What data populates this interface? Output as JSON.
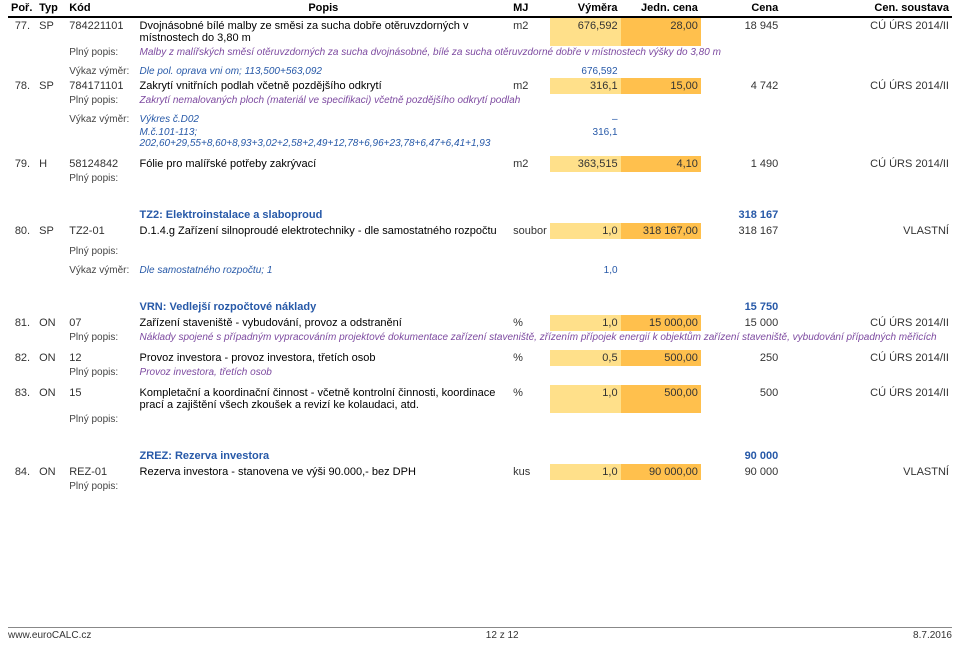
{
  "header": {
    "por": "Poř.",
    "typ": "Typ",
    "kod": "Kód",
    "popis": "Popis",
    "mj": "MJ",
    "vymera": "Výměra",
    "jedn": "Jedn. cena",
    "cena": "Cena",
    "soustava": "Cen. soustava"
  },
  "rows": [
    {
      "n": "77.",
      "typ": "SP",
      "kod": "784221101",
      "popis": "Dvojnásobné bílé malby ze směsi za sucha dobře otěruvzdorných v místnostech do 3,80 m",
      "mj": "m2",
      "vym": "676,592",
      "jedn": "28,00",
      "cena": "18 945",
      "soust": "CÚ ÚRS 2014/II",
      "pp_lbl": "Plný popis:",
      "pp_txt": "Malby z malířských směsí otěruvzdorných za sucha dvojnásobné, bílé za sucha otěruvzdorné dobře v místnostech výšky do 3,80 m",
      "vv_lbl": "Výkaz výměr:",
      "vv_txt": "Dle pol. oprava vni om;      113,500+563,092",
      "vv_val": "676,592"
    },
    {
      "n": "78.",
      "typ": "SP",
      "kod": "784171101",
      "popis": "Zakrytí vnitřních podlah včetně pozdějšího odkrytí",
      "mj": "m2",
      "vym": "316,1",
      "jedn": "15,00",
      "cena": "4 742",
      "soust": "CÚ ÚRS 2014/II",
      "pp_lbl": "Plný popis:",
      "pp_txt": "Zakrytí nemalovaných ploch (materiál ve specifikaci) včetně pozdějšího odkrytí podlah",
      "vv_lbl": "Výkaz výměr:",
      "vv_txt": "Výkres č.D02",
      "vv_val": "–",
      "vv2_txt": "M.č.101-113;       202,60+29,55+8,60+8,93+3,02+2,58+2,49+12,78+6,96+23,78+6,47+6,41+1,93",
      "vv2_val": "316,1"
    },
    {
      "n": "79.",
      "typ": "H",
      "kod": "58124842",
      "popis": "Fólie pro malířské potřeby zakrývací",
      "mj": "m2",
      "vym": "363,515",
      "jedn": "4,10",
      "cena": "1 490",
      "soust": "CÚ ÚRS 2014/II",
      "pp_lbl": "Plný popis:"
    }
  ],
  "section_tz2": {
    "title": "TZ2: Elektroinstalace a slaboproud",
    "total": "318 167"
  },
  "row80": {
    "n": "80.",
    "typ": "SP",
    "kod": "TZ2-01",
    "popis": "D.1.4.g Zařízení silnoproudé elektrotechniky - dle samostatného rozpočtu",
    "mj": "soubor",
    "vym": "1,0",
    "jedn": "318 167,00",
    "cena": "318 167",
    "soust": "VLASTNÍ",
    "pp_lbl": "Plný popis:",
    "vv_lbl": "Výkaz výměr:",
    "vv_txt": "Dle samostatného rozpočtu;      1",
    "vv_val": "1,0"
  },
  "section_vrn": {
    "title": "VRN: Vedlejší rozpočtové náklady",
    "total": "15 750"
  },
  "row81": {
    "n": "81.",
    "typ": "ON",
    "kod": "07",
    "popis": "Zařízení staveniště - vybudování, provoz a odstranění",
    "mj": "%",
    "vym": "1,0",
    "jedn": "15 000,00",
    "cena": "15 000",
    "soust": "CÚ ÚRS 2014/II",
    "pp_lbl": "Plný popis:",
    "pp_txt": "Náklady spojené s případným vypracováním projektové dokumentace zařízení staveniště, zřízením přípojek energií k objektům zařízení staveniště, vybudování případných měřicích"
  },
  "row82": {
    "n": "82.",
    "typ": "ON",
    "kod": "12",
    "popis": "Provoz investora - provoz investora, třetích osob",
    "mj": "%",
    "vym": "0,5",
    "jedn": "500,00",
    "cena": "250",
    "soust": "CÚ ÚRS 2014/II",
    "pp_lbl": "Plný popis:",
    "pp_txt": "Provoz investora, třetích osob"
  },
  "row83": {
    "n": "83.",
    "typ": "ON",
    "kod": "15",
    "popis": "Kompletační a koordinační činnost - včetně kontrolní činnosti, koordinace prací a zajištění všech zkoušek a revizí ke kolaudaci, atd.",
    "mj": "%",
    "vym": "1,0",
    "jedn": "500,00",
    "cena": "500",
    "soust": "CÚ ÚRS 2014/II",
    "pp_lbl": "Plný popis:"
  },
  "section_zrez": {
    "title": "ZREZ: Rezerva investora",
    "total": "90 000"
  },
  "row84": {
    "n": "84.",
    "typ": "ON",
    "kod": "REZ-01",
    "popis": "Rezerva investora - stanovena ve výši 90.000,- bez DPH",
    "mj": "kus",
    "vym": "1,0",
    "jedn": "90 000,00",
    "cena": "90 000",
    "soust": "VLASTNÍ",
    "pp_lbl": "Plný popis:"
  },
  "footer": {
    "left": "www.euroCALC.cz",
    "mid": "12 z 12",
    "right": "8.7.2016"
  }
}
